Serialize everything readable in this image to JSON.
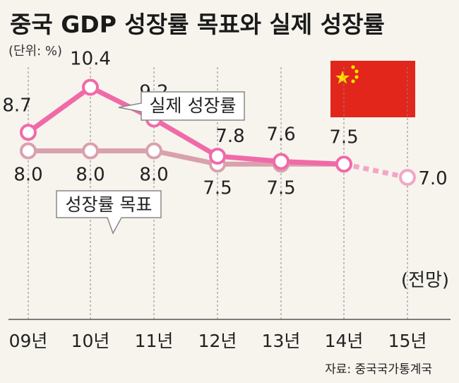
{
  "title": "중국 GDP 성장률 목표와 실제 성장률",
  "unit": "(단위: %)",
  "source": "자료: 중국국가통계국",
  "chart_data": {
    "type": "line",
    "title": "중국 GDP 성장률 목표와 실제 성장률",
    "unit": "(단위: %)",
    "categories": [
      "09년",
      "10년",
      "11년",
      "12년",
      "13년",
      "14년",
      "15년"
    ],
    "series": [
      {
        "name": "실제 성장률",
        "color": "#f06aa8",
        "values": [
          8.7,
          10.4,
          9.2,
          7.8,
          7.6,
          7.5,
          null
        ]
      },
      {
        "name": "성장률 목표",
        "color": "#d9a1ad",
        "values": [
          8.0,
          8.0,
          8.0,
          7.5,
          7.5,
          7.5,
          7.0
        ],
        "labels": [
          "8.0",
          "8.0",
          "8.0",
          "7.5",
          "7.5",
          "",
          "7.0"
        ],
        "projection_from_index": 5,
        "projection_color": "#f2a6c7"
      }
    ],
    "actual_labels": [
      "8.7",
      "10.4",
      "9.2",
      "7.8",
      "7.6",
      "7.5",
      ""
    ],
    "projection_note": "(전망)",
    "ylim": [
      6.6,
      11.0
    ],
    "grid": "vertical-dashed",
    "flag": "china-flag"
  }
}
